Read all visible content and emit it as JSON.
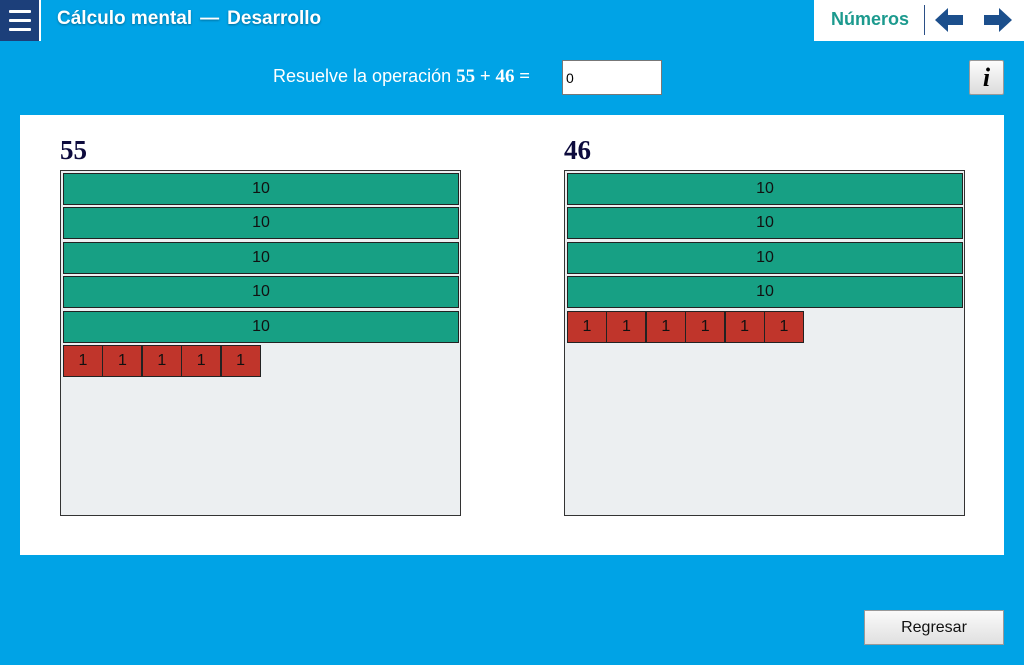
{
  "header": {
    "title": "Cálculo mental",
    "separator": "—",
    "subtitle": "Desarrollo",
    "section": "Números",
    "icons": [
      "menu-icon",
      "arrow-left-icon",
      "arrow-right-icon"
    ],
    "colors": {
      "background": "#00a3e6",
      "menu": "#1c3f7a",
      "nav_arrows": "#1c4f8c",
      "section_text": "#1c9a8e"
    }
  },
  "task": {
    "prompt": "Resuelve la operación",
    "expression": "55 + 46 =",
    "answer_value": "0",
    "info_label": "i"
  },
  "blocks": {
    "left": {
      "number": "55",
      "tens": [
        "10",
        "10",
        "10",
        "10",
        "10"
      ],
      "ones": [
        "1",
        "1",
        "1",
        "1",
        "1"
      ]
    },
    "right": {
      "number": "46",
      "tens": [
        "10",
        "10",
        "10",
        "10"
      ],
      "ones": [
        "1",
        "1",
        "1",
        "1",
        "1",
        "1"
      ]
    },
    "colors": {
      "ten": "#17a084",
      "one": "#c0352b",
      "box": "#eceff1"
    }
  },
  "footer": {
    "back_label": "Regresar"
  }
}
